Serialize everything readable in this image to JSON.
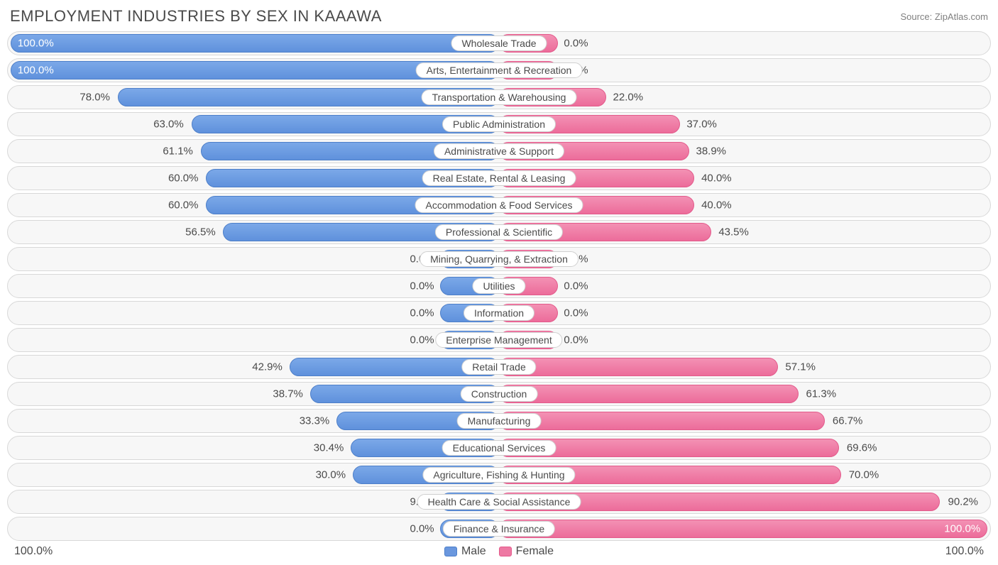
{
  "title": "EMPLOYMENT INDUSTRIES BY SEX IN KAAAWA",
  "source": "Source: ZipAtlas.com",
  "axis_left": "100.0%",
  "axis_right": "100.0%",
  "legend": {
    "male": "Male",
    "female": "Female"
  },
  "colors": {
    "male_bar": "#6a97de",
    "female_bar": "#ee79a3",
    "row_border": "#d8d8d8",
    "row_bg": "#f7f7f7",
    "text": "#4a4a4a"
  },
  "chart": {
    "type": "diverging-bar",
    "min_bar_pct": 12,
    "rows": [
      {
        "label": "Wholesale Trade",
        "male": 100.0,
        "female": 0.0,
        "male_txt": "100.0%",
        "female_txt": "0.0%"
      },
      {
        "label": "Arts, Entertainment & Recreation",
        "male": 100.0,
        "female": 0.0,
        "male_txt": "100.0%",
        "female_txt": "0.0%"
      },
      {
        "label": "Transportation & Warehousing",
        "male": 78.0,
        "female": 22.0,
        "male_txt": "78.0%",
        "female_txt": "22.0%"
      },
      {
        "label": "Public Administration",
        "male": 63.0,
        "female": 37.0,
        "male_txt": "63.0%",
        "female_txt": "37.0%"
      },
      {
        "label": "Administrative & Support",
        "male": 61.1,
        "female": 38.9,
        "male_txt": "61.1%",
        "female_txt": "38.9%"
      },
      {
        "label": "Real Estate, Rental & Leasing",
        "male": 60.0,
        "female": 40.0,
        "male_txt": "60.0%",
        "female_txt": "40.0%"
      },
      {
        "label": "Accommodation & Food Services",
        "male": 60.0,
        "female": 40.0,
        "male_txt": "60.0%",
        "female_txt": "40.0%"
      },
      {
        "label": "Professional & Scientific",
        "male": 56.5,
        "female": 43.5,
        "male_txt": "56.5%",
        "female_txt": "43.5%"
      },
      {
        "label": "Mining, Quarrying, & Extraction",
        "male": 0.0,
        "female": 0.0,
        "male_txt": "0.0%",
        "female_txt": "0.0%"
      },
      {
        "label": "Utilities",
        "male": 0.0,
        "female": 0.0,
        "male_txt": "0.0%",
        "female_txt": "0.0%"
      },
      {
        "label": "Information",
        "male": 0.0,
        "female": 0.0,
        "male_txt": "0.0%",
        "female_txt": "0.0%"
      },
      {
        "label": "Enterprise Management",
        "male": 0.0,
        "female": 0.0,
        "male_txt": "0.0%",
        "female_txt": "0.0%"
      },
      {
        "label": "Retail Trade",
        "male": 42.9,
        "female": 57.1,
        "male_txt": "42.9%",
        "female_txt": "57.1%"
      },
      {
        "label": "Construction",
        "male": 38.7,
        "female": 61.3,
        "male_txt": "38.7%",
        "female_txt": "61.3%"
      },
      {
        "label": "Manufacturing",
        "male": 33.3,
        "female": 66.7,
        "male_txt": "33.3%",
        "female_txt": "66.7%"
      },
      {
        "label": "Educational Services",
        "male": 30.4,
        "female": 69.6,
        "male_txt": "30.4%",
        "female_txt": "69.6%"
      },
      {
        "label": "Agriculture, Fishing & Hunting",
        "male": 30.0,
        "female": 70.0,
        "male_txt": "30.0%",
        "female_txt": "70.0%"
      },
      {
        "label": "Health Care & Social Assistance",
        "male": 9.8,
        "female": 90.2,
        "male_txt": "9.8%",
        "female_txt": "90.2%"
      },
      {
        "label": "Finance & Insurance",
        "male": 0.0,
        "female": 100.0,
        "male_txt": "0.0%",
        "female_txt": "100.0%"
      }
    ]
  }
}
